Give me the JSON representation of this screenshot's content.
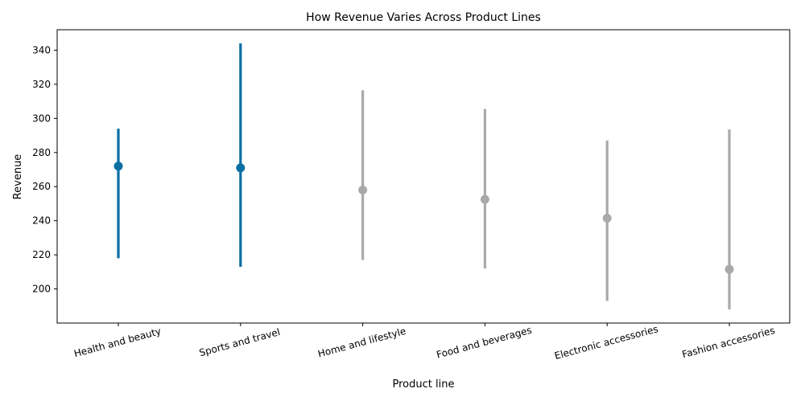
{
  "chart_data": {
    "type": "pointplot",
    "title": "How Revenue Varies Across Product Lines",
    "xlabel": "Product line",
    "ylabel": "Revenue",
    "categories": [
      "Health and beauty",
      "Sports and travel",
      "Home and lifestyle",
      "Food and beverages",
      "Electronic accessories",
      "Fashion accessories"
    ],
    "values": [
      272,
      271,
      258,
      252.5,
      241.5,
      211.5
    ],
    "error_low": [
      218,
      213,
      217,
      212,
      193,
      188
    ],
    "error_high": [
      294,
      344,
      316.5,
      305.5,
      287,
      293.5
    ],
    "highlighted": [
      true,
      true,
      false,
      false,
      false,
      false
    ],
    "colors": {
      "highlight": "#0a6fa3",
      "default": "#a9a9a9"
    },
    "yticks": [
      200,
      220,
      240,
      260,
      280,
      300,
      320,
      340
    ],
    "ylim": [
      180,
      352
    ],
    "grid": false,
    "legend": false
  }
}
